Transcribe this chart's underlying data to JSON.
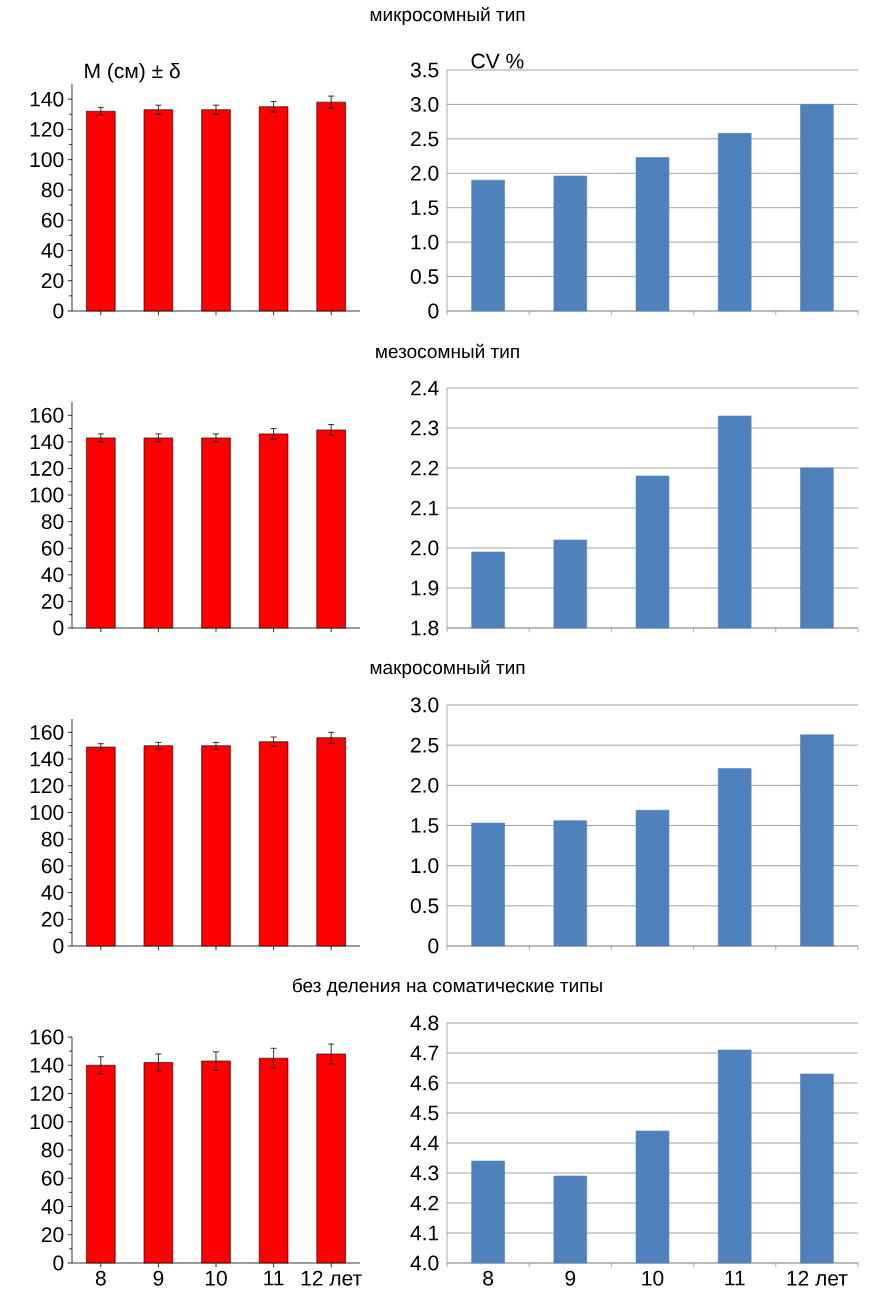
{
  "chart_data": [
    {
      "type": "bar",
      "ylabel": "М (см) ± δ",
      "categories": [
        null,
        null,
        null,
        null,
        null
      ],
      "values": [
        132,
        133,
        133,
        135,
        138
      ],
      "errors": [
        2.5,
        3,
        3,
        3.5,
        4
      ],
      "color": "#ff0000",
      "ylim": [
        0,
        150
      ],
      "yticks": [
        0,
        20,
        40,
        60,
        80,
        100,
        120,
        140
      ],
      "tick_labels": "y"
    },
    {
      "type": "bar",
      "title": "микросомный тип",
      "ylabel": "CV %",
      "categories": [
        null,
        null,
        null,
        null,
        null
      ],
      "values": [
        1.9,
        1.96,
        2.23,
        2.58,
        3.0
      ],
      "color": "#4f81bd",
      "ylim": [
        0,
        3.5
      ],
      "yticks": [
        0,
        0.5,
        {
          "value": 1,
          "label": "1.0"
        },
        1.5,
        {
          "value": 2,
          "label": "2.0"
        },
        2.5,
        {
          "value": 3,
          "label": "3.0"
        },
        3.5
      ],
      "grid": "y",
      "tick_labels": "y"
    },
    {
      "type": "bar",
      "categories": [
        null,
        null,
        null,
        null,
        null
      ],
      "values": [
        143,
        143,
        143,
        146,
        149
      ],
      "errors": [
        3,
        3,
        3,
        4,
        4
      ],
      "color": "#ff0000",
      "ylim": [
        0,
        170
      ],
      "yticks": [
        0,
        20,
        40,
        60,
        80,
        100,
        120,
        140,
        160
      ],
      "tick_labels": "y"
    },
    {
      "type": "bar",
      "categories": [
        null,
        null,
        null,
        null,
        null
      ],
      "values": [
        1.99,
        2.02,
        2.18,
        2.33,
        2.2
      ],
      "title": "мезосомный тип",
      "color": "#4f81bd",
      "ylim": [
        1.8,
        2.4
      ],
      "yticks": [
        1.8,
        1.9,
        {
          "value": 2,
          "label": "2.0"
        },
        2.1,
        2.2,
        2.3,
        2.4
      ],
      "grid": "y",
      "tick_labels": "y"
    },
    {
      "type": "bar",
      "categories": [
        null,
        null,
        null,
        null,
        null
      ],
      "values": [
        149,
        150,
        150,
        153,
        156
      ],
      "errors": [
        2.5,
        2.5,
        2.5,
        3.5,
        4
      ],
      "color": "#ff0000",
      "ylim": [
        0,
        170
      ],
      "yticks": [
        0,
        20,
        40,
        60,
        80,
        100,
        120,
        140,
        160
      ],
      "tick_labels": "y"
    },
    {
      "type": "bar",
      "categories": [
        null,
        null,
        null,
        null,
        null
      ],
      "values": [
        1.53,
        1.56,
        1.69,
        2.21,
        2.63
      ],
      "title": "макросомный тип",
      "color": "#4f81bd",
      "ylim": [
        0,
        3.0
      ],
      "yticks": [
        0,
        0.5,
        {
          "value": 1,
          "label": "1.0"
        },
        1.5,
        {
          "value": 2,
          "label": "2.0"
        },
        2.5,
        {
          "value": 3,
          "label": "3.0"
        }
      ],
      "grid": "y",
      "tick_labels": "y"
    },
    {
      "type": "bar",
      "categories": [
        "8",
        "9",
        "10",
        "11",
        "12 лет"
      ],
      "values": [
        140,
        142,
        143,
        145,
        148
      ],
      "errors": [
        6,
        6,
        6.5,
        7,
        7
      ],
      "color": "#ff0000",
      "ylim": [
        0,
        160
      ],
      "yticks": [
        0,
        20,
        40,
        60,
        80,
        100,
        120,
        140,
        160
      ]
    },
    {
      "type": "bar",
      "categories": [
        "8",
        "9",
        "10",
        "11",
        "12 лет"
      ],
      "values": [
        4.34,
        4.29,
        4.44,
        4.71,
        4.63
      ],
      "title": "без деления на соматические типы",
      "color": "#4f81bd",
      "ylim": [
        4.0,
        4.8
      ],
      "yticks": [
        {
          "value": 4,
          "label": "4.0"
        },
        4.1,
        4.2,
        4.3,
        4.4,
        4.5,
        4.6,
        4.7,
        4.8
      ],
      "grid": "y"
    }
  ]
}
